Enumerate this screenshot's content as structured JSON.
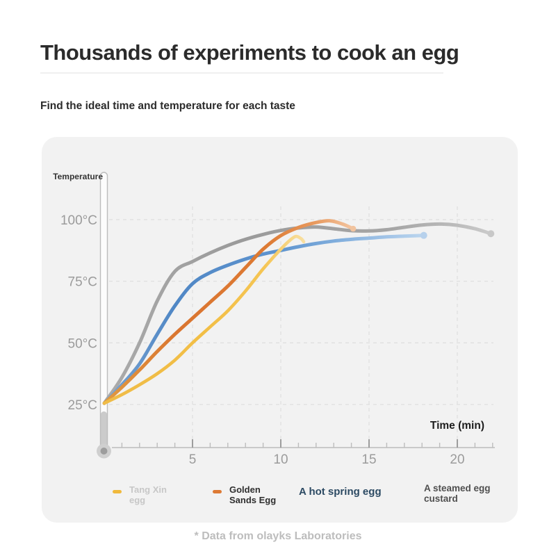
{
  "header": {
    "title": "Thousands of experiments to cook an egg",
    "subtitle": "Find the ideal time and temperature for each taste"
  },
  "footer": {
    "note": "* Data from olayks Laboratories"
  },
  "chart_data": {
    "type": "line",
    "title": "Egg cooking temperature curves",
    "xlabel": "Time (min)",
    "ylabel": "Temperature",
    "x_ticks": [
      5,
      10,
      15,
      20
    ],
    "x_minor_tick_step": 1,
    "xlim": [
      0,
      22.3
    ],
    "y_ticks": [
      25,
      50,
      75,
      100
    ],
    "y_unit": "°C",
    "ylim": [
      25,
      100
    ],
    "grid": "dashed",
    "legend_position": "bottom",
    "colors": {
      "card_background": "#f2f2f2",
      "grid": "#dfdfdf",
      "axis": "#c9c9c9",
      "tick_label": "#9b9b9b",
      "axis_title": "#333333",
      "time_label": "#1d1d1d",
      "thermometer_outline": "#bcbcbc",
      "thermometer_mercury": "#cbcbcb",
      "thermometer_bulb": "#9d9d9d"
    },
    "series": [
      {
        "name": "Tang Xin egg",
        "stroke_width": 4.6,
        "gradient": [
          [
            0,
            "#efbc48"
          ],
          [
            0.5,
            "#f2be45"
          ],
          [
            0.8,
            "#f5c554"
          ],
          [
            1,
            "#f8dfa0"
          ]
        ],
        "end_dot": null,
        "points": [
          [
            0,
            25.5
          ],
          [
            1,
            29
          ],
          [
            2,
            33
          ],
          [
            3,
            37.5
          ],
          [
            4,
            43
          ],
          [
            5,
            50
          ],
          [
            6,
            56.5
          ],
          [
            7,
            63
          ],
          [
            8,
            71
          ],
          [
            9,
            80
          ],
          [
            10,
            88
          ],
          [
            10.5,
            91.5
          ],
          [
            10.85,
            93.2
          ],
          [
            11.15,
            92.3
          ],
          [
            11.3,
            91
          ]
        ]
      },
      {
        "name": "Golden Sands Egg",
        "stroke_width": 5,
        "gradient": [
          [
            0,
            "#e09a42"
          ],
          [
            0.3,
            "#da7530"
          ],
          [
            0.65,
            "#dd7a33"
          ],
          [
            0.85,
            "#e89a5f"
          ],
          [
            1,
            "#f3c6a2"
          ]
        ],
        "end_dot": {
          "color": "#f1c39e",
          "r": 4.2
        },
        "points": [
          [
            0,
            25.5
          ],
          [
            1,
            32
          ],
          [
            2,
            39
          ],
          [
            3,
            46.5
          ],
          [
            4,
            53.5
          ],
          [
            5,
            60
          ],
          [
            6,
            66.5
          ],
          [
            7,
            73
          ],
          [
            8,
            80.5
          ],
          [
            9,
            88
          ],
          [
            10,
            93.5
          ],
          [
            11,
            96.8
          ],
          [
            12,
            98.8
          ],
          [
            12.8,
            99.5
          ],
          [
            13.5,
            98.2
          ],
          [
            14.1,
            96.3
          ]
        ]
      },
      {
        "name": "A hot spring egg",
        "stroke_width": 5,
        "gradient": [
          [
            0,
            "#7aa5d3"
          ],
          [
            0.22,
            "#5087c5"
          ],
          [
            0.55,
            "#5e94cf"
          ],
          [
            0.75,
            "#85b1de"
          ],
          [
            0.9,
            "#a5c6e8"
          ],
          [
            1,
            "#bcd6ee"
          ]
        ],
        "end_dot": {
          "color": "#b7d1ec",
          "r": 5
        },
        "points": [
          [
            0,
            25.5
          ],
          [
            1,
            33
          ],
          [
            2,
            41.5
          ],
          [
            3,
            53.5
          ],
          [
            4,
            65
          ],
          [
            5,
            74
          ],
          [
            6,
            78.5
          ],
          [
            7,
            81.5
          ],
          [
            8,
            84
          ],
          [
            9,
            86
          ],
          [
            10,
            87.5
          ],
          [
            11,
            89
          ],
          [
            12,
            90.3
          ],
          [
            13,
            91.3
          ],
          [
            14,
            92
          ],
          [
            15,
            92.5
          ],
          [
            16,
            93
          ],
          [
            17,
            93.3
          ],
          [
            18.1,
            93.6
          ]
        ]
      },
      {
        "name": "A steamed egg custard",
        "stroke_width": 5,
        "gradient": [
          [
            0,
            "#ababab"
          ],
          [
            0.35,
            "#9a9a9a"
          ],
          [
            0.75,
            "#a6a6a6"
          ],
          [
            0.92,
            "#bdbdbd"
          ],
          [
            1,
            "#cbcbcb"
          ]
        ],
        "end_dot": {
          "color": "#c8c8c8",
          "r": 5
        },
        "points": [
          [
            0,
            25.5
          ],
          [
            1,
            36
          ],
          [
            2,
            50
          ],
          [
            3,
            67
          ],
          [
            4,
            79
          ],
          [
            5,
            83
          ],
          [
            6,
            86.5
          ],
          [
            7,
            89.5
          ],
          [
            8,
            92
          ],
          [
            9,
            94
          ],
          [
            10,
            95.6
          ],
          [
            11,
            96.6
          ],
          [
            12,
            97
          ],
          [
            13,
            96.3
          ],
          [
            14,
            95.5
          ],
          [
            15,
            95.4
          ],
          [
            16,
            95.9
          ],
          [
            17,
            96.9
          ],
          [
            18,
            97.8
          ],
          [
            19,
            98.2
          ],
          [
            20,
            97.7
          ],
          [
            21,
            96.3
          ],
          [
            21.9,
            94.3
          ]
        ]
      }
    ],
    "legend": [
      {
        "label": "Tang Xin egg",
        "lines": [
          "Tang Xin",
          "egg"
        ],
        "marker_color": "#f0b93c",
        "text_color": "#c7c7c7"
      },
      {
        "label": "Golden Sands Egg",
        "lines": [
          "Golden",
          "Sands Egg"
        ],
        "marker_color": "#dd7a35",
        "text_color": "#2e2e2e"
      },
      {
        "label": "A hot spring egg",
        "lines": [
          "A hot spring egg"
        ],
        "marker_color": null,
        "text_color": "#2c4a63"
      },
      {
        "label": "A steamed egg custard",
        "lines": [
          "A steamed egg",
          "custard"
        ],
        "marker_color": null,
        "text_color": "#4f4f4f"
      }
    ]
  }
}
